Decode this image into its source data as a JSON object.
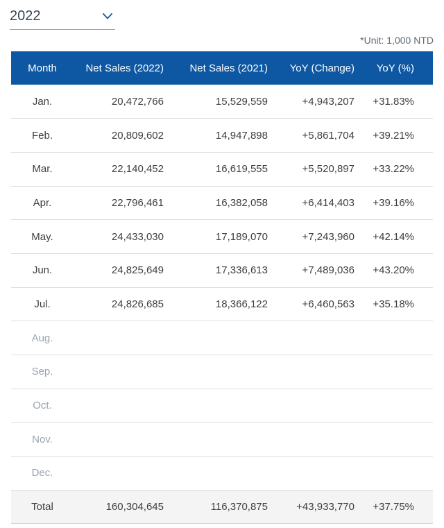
{
  "year_select": {
    "value": "2022",
    "chevron_icon": "chevron-down"
  },
  "unit_note": "*Unit: 1,000 NTD",
  "table": {
    "headers": [
      "Month",
      "Net Sales (2022)",
      "Net Sales (2021)",
      "YoY (Change)",
      "YoY (%)"
    ],
    "rows": [
      {
        "month": "Jan.",
        "sales_2022": "20,472,766",
        "sales_2021": "15,529,559",
        "yoy_change": "+4,943,207",
        "yoy_pct": "+31.83%"
      },
      {
        "month": "Feb.",
        "sales_2022": "20,809,602",
        "sales_2021": "14,947,898",
        "yoy_change": "+5,861,704",
        "yoy_pct": "+39.21%"
      },
      {
        "month": "Mar.",
        "sales_2022": "22,140,452",
        "sales_2021": "16,619,555",
        "yoy_change": "+5,520,897",
        "yoy_pct": "+33.22%"
      },
      {
        "month": "Apr.",
        "sales_2022": "22,796,461",
        "sales_2021": "16,382,058",
        "yoy_change": "+6,414,403",
        "yoy_pct": "+39.16%"
      },
      {
        "month": "May.",
        "sales_2022": "24,433,030",
        "sales_2021": "17,189,070",
        "yoy_change": "+7,243,960",
        "yoy_pct": "+42.14%"
      },
      {
        "month": "Jun.",
        "sales_2022": "24,825,649",
        "sales_2021": "17,336,613",
        "yoy_change": "+7,489,036",
        "yoy_pct": "+43.20%"
      },
      {
        "month": "Jul.",
        "sales_2022": "24,826,685",
        "sales_2021": "18,366,122",
        "yoy_change": "+6,460,563",
        "yoy_pct": "+35.18%"
      },
      {
        "month": "Aug.",
        "sales_2022": "",
        "sales_2021": "",
        "yoy_change": "",
        "yoy_pct": ""
      },
      {
        "month": "Sep.",
        "sales_2022": "",
        "sales_2021": "",
        "yoy_change": "",
        "yoy_pct": ""
      },
      {
        "month": "Oct.",
        "sales_2022": "",
        "sales_2021": "",
        "yoy_change": "",
        "yoy_pct": ""
      },
      {
        "month": "Nov.",
        "sales_2022": "",
        "sales_2021": "",
        "yoy_change": "",
        "yoy_pct": ""
      },
      {
        "month": "Dec.",
        "sales_2022": "",
        "sales_2021": "",
        "yoy_change": "",
        "yoy_pct": ""
      }
    ],
    "total": {
      "label": "Total",
      "sales_2022": "160,304,645",
      "sales_2021": "116,370,875",
      "yoy_change": "+43,933,770",
      "yoy_pct": "+37.75%"
    }
  },
  "colors": {
    "header_bg": "#0d57a3",
    "header_text": "#ffffff",
    "body_text": "#3f3f3f",
    "empty_month_text": "#9aa4b0",
    "row_border": "#dcdcdc",
    "total_row_bg": "#f4f4f5",
    "unit_note_text": "#5f6973",
    "year_text": "#3a4656",
    "chevron_blue": "#2060a8",
    "select_underline": "#9aa6b2"
  }
}
